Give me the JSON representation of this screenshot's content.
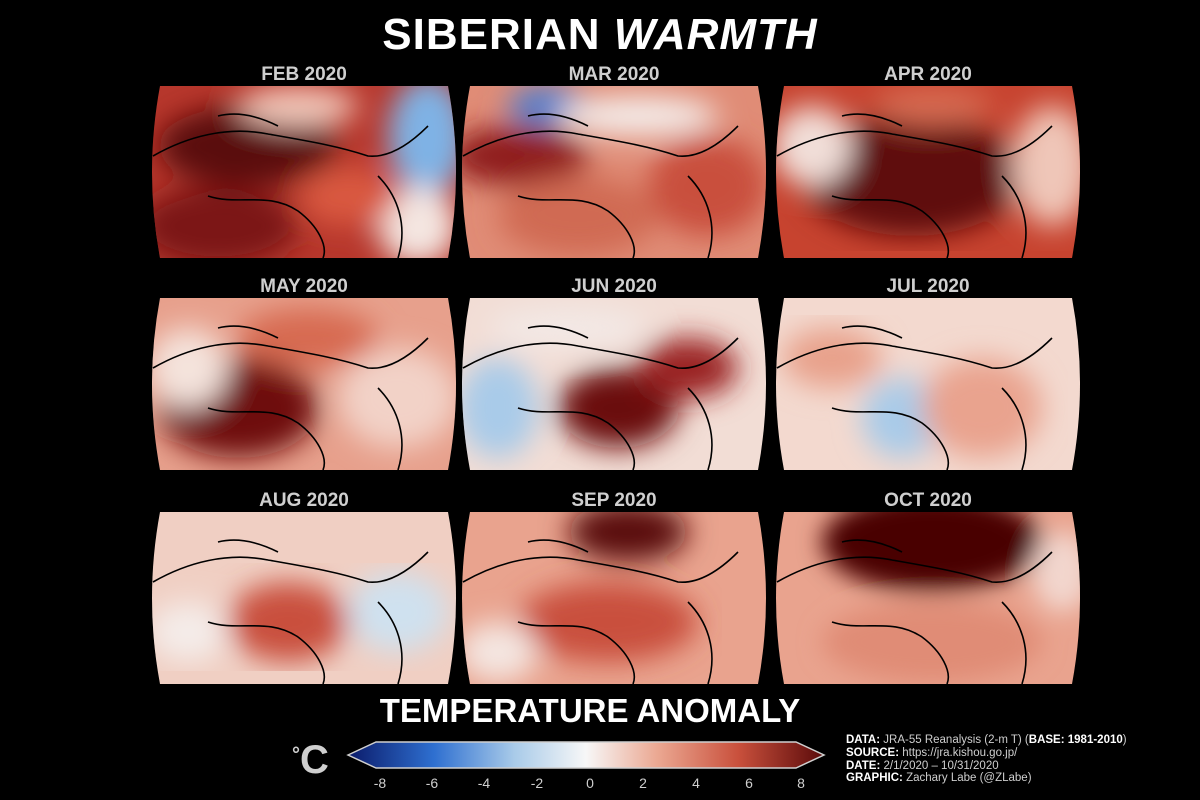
{
  "title": {
    "main": "SIBERIAN",
    "emph": "WARMTH"
  },
  "panels": [
    {
      "label": "FEB 2020"
    },
    {
      "label": "MAR 2020"
    },
    {
      "label": "APR 2020"
    },
    {
      "label": "MAY 2020"
    },
    {
      "label": "JUN 2020"
    },
    {
      "label": "JUL 2020"
    },
    {
      "label": "AUG 2020"
    },
    {
      "label": "SEP 2020"
    },
    {
      "label": "OCT 2020"
    }
  ],
  "legend": {
    "title": "TEMPERATURE ANOMALY",
    "unit": "C",
    "unit_degree": "°",
    "ticks": [
      "-8",
      "-6",
      "-4",
      "-2",
      "0",
      "2",
      "4",
      "6",
      "8"
    ],
    "range": [
      -8,
      8
    ],
    "colors": {
      "cold_extreme": "#0b1b6a",
      "cold": "#2e6fd0",
      "neutral": "#f7f7f7",
      "warm": "#d9583f",
      "warm_extreme": "#5a0a0a"
    }
  },
  "credits": {
    "data_label": "DATA",
    "data_value": "JRA-55 Reanalysis (2-m T) (",
    "base_label": "BASE: 1981-2010",
    "data_tail": ")",
    "source_label": "SOURCE",
    "source_value": "https://jra.kishou.go.jp/",
    "date_label": "DATE",
    "date_value": "2/1/2020 – 10/31/2020",
    "graphic_label": "GRAPHIC",
    "graphic_value": "Zachary Labe (@ZLabe)"
  }
}
